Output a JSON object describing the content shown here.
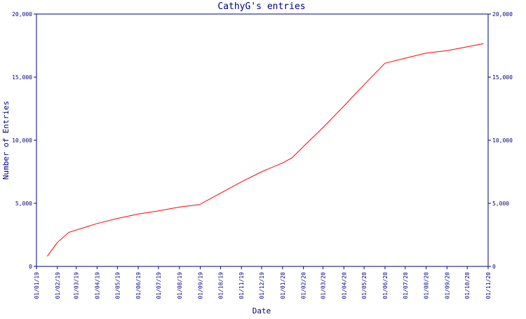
{
  "chart_data": {
    "type": "line",
    "title": "CathyG's entries",
    "xlabel": "Date",
    "ylabel": "Number of Entries",
    "ylim": [
      0,
      20000
    ],
    "xlim": [
      "2019-01-01",
      "2020-11-01"
    ],
    "grid": false,
    "legend": "none",
    "colors": {
      "line": "#ff0000",
      "axis": "#000080"
    },
    "y_ticks": [
      {
        "value": 0,
        "label": "0"
      },
      {
        "value": 5000,
        "label": "5,000"
      },
      {
        "value": 10000,
        "label": "10,000"
      },
      {
        "value": 15000,
        "label": "15,000"
      },
      {
        "value": 20000,
        "label": "20,000"
      }
    ],
    "x_ticks": [
      {
        "date": "2019-01-01",
        "label": "01/01/19"
      },
      {
        "date": "2019-02-01",
        "label": "01/02/19"
      },
      {
        "date": "2019-03-01",
        "label": "01/03/19"
      },
      {
        "date": "2019-04-01",
        "label": "01/04/19"
      },
      {
        "date": "2019-05-01",
        "label": "01/05/19"
      },
      {
        "date": "2019-06-01",
        "label": "01/06/19"
      },
      {
        "date": "2019-07-01",
        "label": "01/07/19"
      },
      {
        "date": "2019-08-01",
        "label": "01/08/19"
      },
      {
        "date": "2019-09-01",
        "label": "01/09/19"
      },
      {
        "date": "2019-10-01",
        "label": "01/10/19"
      },
      {
        "date": "2019-11-01",
        "label": "01/11/19"
      },
      {
        "date": "2019-12-01",
        "label": "01/12/19"
      },
      {
        "date": "2020-01-01",
        "label": "01/01/20"
      },
      {
        "date": "2020-02-01",
        "label": "01/02/20"
      },
      {
        "date": "2020-03-01",
        "label": "01/03/20"
      },
      {
        "date": "2020-04-01",
        "label": "01/04/20"
      },
      {
        "date": "2020-05-01",
        "label": "01/05/20"
      },
      {
        "date": "2020-06-01",
        "label": "01/06/20"
      },
      {
        "date": "2020-07-01",
        "label": "01/07/20"
      },
      {
        "date": "2020-08-01",
        "label": "01/08/20"
      },
      {
        "date": "2020-09-01",
        "label": "01/09/20"
      },
      {
        "date": "2020-10-01",
        "label": "01/10/20"
      },
      {
        "date": "2020-11-01",
        "label": "01/11/20"
      }
    ],
    "series": [
      {
        "points": [
          {
            "x": "2019-01-17",
            "y": 800
          },
          {
            "x": "2019-02-01",
            "y": 1900
          },
          {
            "x": "2019-02-18",
            "y": 2700
          },
          {
            "x": "2019-04-01",
            "y": 3400
          },
          {
            "x": "2019-05-01",
            "y": 3800
          },
          {
            "x": "2019-06-01",
            "y": 4150
          },
          {
            "x": "2019-07-01",
            "y": 4400
          },
          {
            "x": "2019-08-01",
            "y": 4700
          },
          {
            "x": "2019-08-31",
            "y": 4900
          },
          {
            "x": "2019-10-01",
            "y": 5800
          },
          {
            "x": "2019-11-01",
            "y": 6700
          },
          {
            "x": "2019-12-01",
            "y": 7500
          },
          {
            "x": "2020-01-01",
            "y": 8200
          },
          {
            "x": "2020-01-15",
            "y": 8600
          },
          {
            "x": "2020-02-01",
            "y": 9500
          },
          {
            "x": "2020-03-01",
            "y": 11000
          },
          {
            "x": "2020-04-01",
            "y": 12700
          },
          {
            "x": "2020-05-01",
            "y": 14400
          },
          {
            "x": "2020-06-01",
            "y": 16100
          },
          {
            "x": "2020-07-01",
            "y": 16500
          },
          {
            "x": "2020-08-01",
            "y": 16900
          },
          {
            "x": "2020-09-01",
            "y": 17100
          },
          {
            "x": "2020-10-01",
            "y": 17400
          },
          {
            "x": "2020-10-25",
            "y": 17650
          }
        ]
      }
    ]
  }
}
